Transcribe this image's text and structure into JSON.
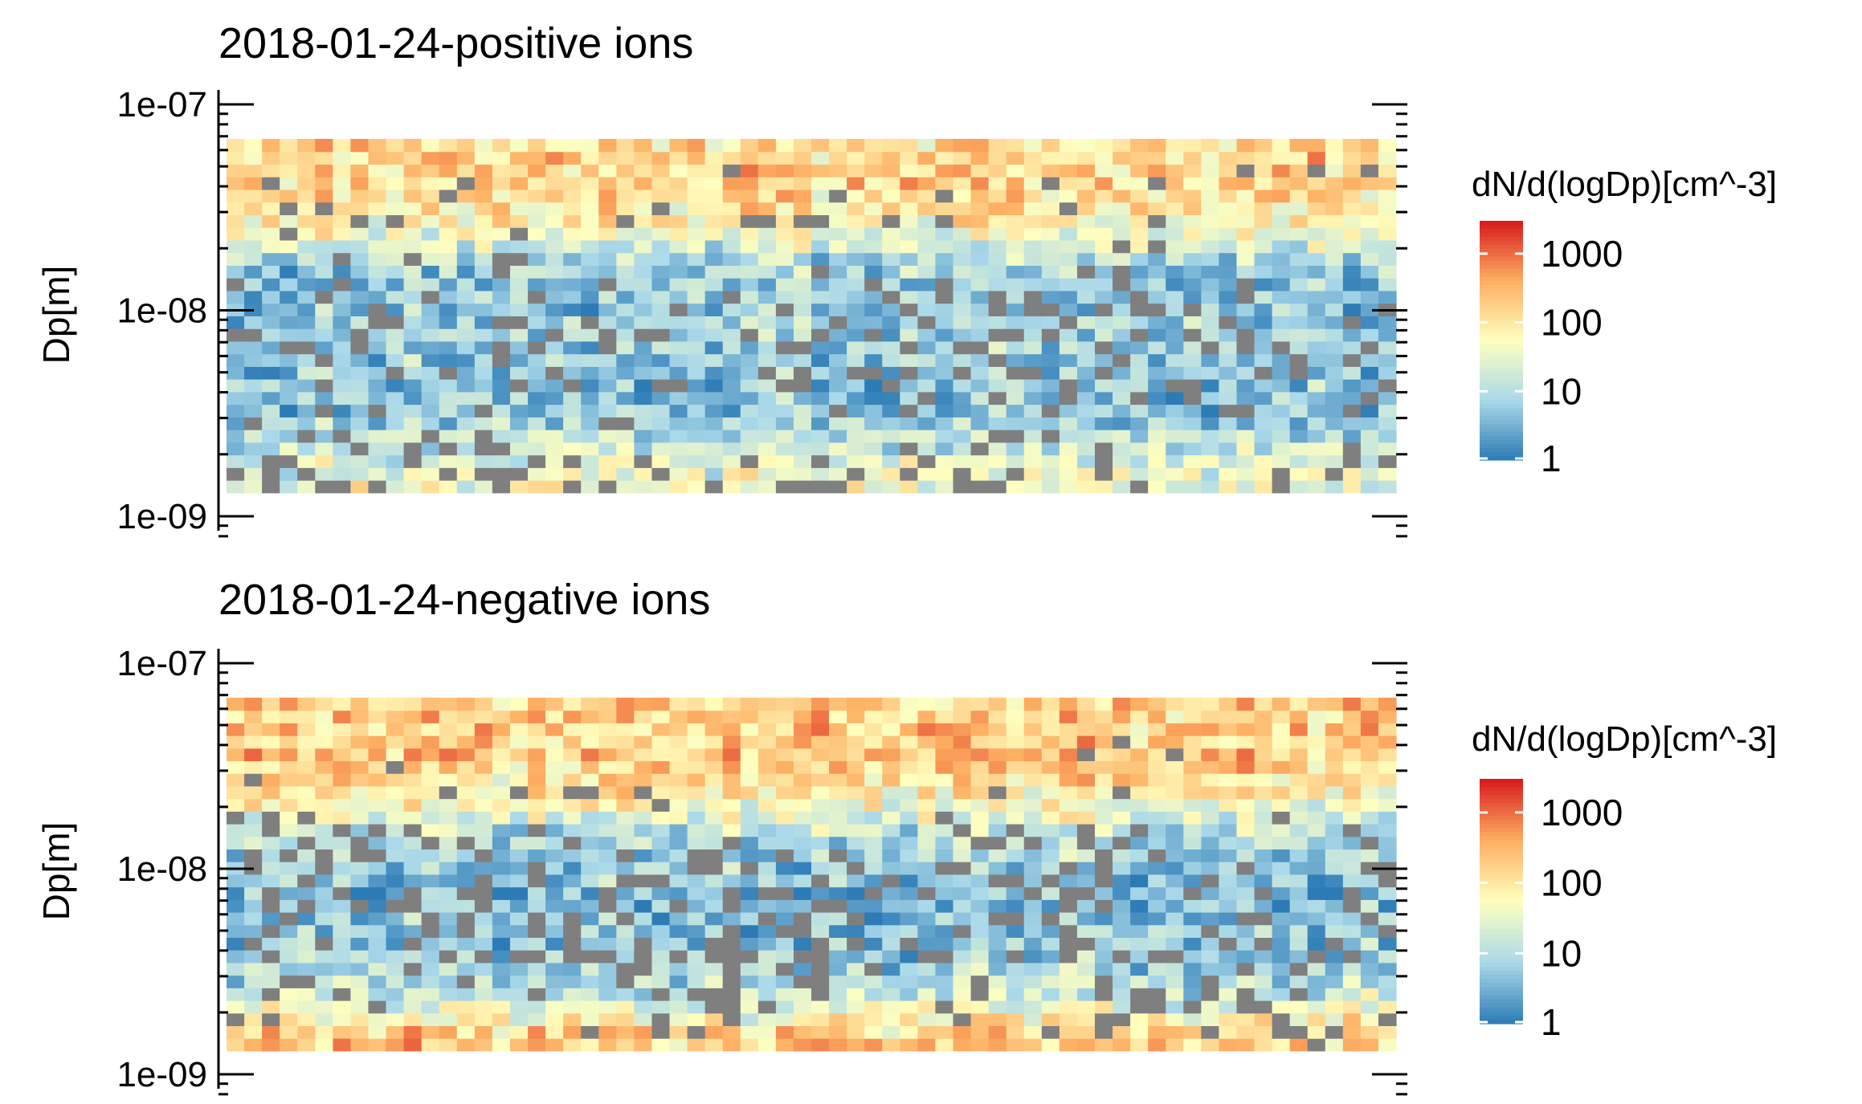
{
  "chart_data": [
    {
      "type": "heatmap",
      "title": "2018-01-24-positive ions",
      "xlabel": "",
      "ylabel": "Dp[m]",
      "y_scale": "log",
      "ylim": [
        1e-09,
        1e-07
      ],
      "y_ticks": [
        {
          "value": 1e-07,
          "label": "1e-07"
        },
        {
          "value": 1e-08,
          "label": "1e-08"
        },
        {
          "value": 1e-09,
          "label": "1e-09"
        }
      ],
      "y_extent": [
        1.3e-09,
        6.8e-08
      ],
      "size_bins": 28,
      "time_bins": 66,
      "missing_color": "#7f7f7f",
      "color_scale": {
        "title": "dN/d(logDp)[cm^-3]",
        "scale": "log",
        "range": [
          1,
          3000
        ],
        "colors": [
          "#2c7bb6",
          "#abd9e9",
          "#ffffbf",
          "#fdae61",
          "#d7191c"
        ],
        "ticks": [
          {
            "value": 1,
            "label": "1"
          },
          {
            "value": 10,
            "label": "10"
          },
          {
            "value": 100,
            "label": "100"
          },
          {
            "value": 1000,
            "label": "1000"
          }
        ]
      },
      "profile_log10": [
        1.6,
        1.5,
        1.4,
        1.2,
        1.0,
        0.8,
        0.7,
        0.7,
        0.7,
        0.7,
        0.8,
        0.8,
        0.8,
        0.8,
        0.7,
        0.7,
        0.7,
        0.8,
        1.0,
        1.3,
        1.6,
        1.8,
        2.0,
        2.1,
        2.2,
        2.2,
        2.2,
        2.1
      ],
      "missing_fraction": [
        0.3,
        0.24,
        0.2,
        0.18,
        0.16,
        0.14,
        0.14,
        0.16,
        0.18,
        0.2,
        0.22,
        0.24,
        0.26,
        0.24,
        0.2,
        0.16,
        0.12,
        0.08,
        0.05,
        0.04,
        0.05,
        0.06,
        0.07,
        0.07,
        0.06,
        0.05,
        0.04,
        0.03
      ],
      "seed": 11
    },
    {
      "type": "heatmap",
      "title": "2018-01-24-negative ions",
      "xlabel": "",
      "ylabel": "Dp[m]",
      "y_scale": "log",
      "ylim": [
        1e-09,
        1e-07
      ],
      "y_ticks": [
        {
          "value": 1e-07,
          "label": "1e-07"
        },
        {
          "value": 1e-08,
          "label": "1e-08"
        },
        {
          "value": 1e-09,
          "label": "1e-09"
        }
      ],
      "y_extent": [
        1.3e-09,
        6.8e-08
      ],
      "size_bins": 28,
      "time_bins": 66,
      "missing_color": "#7f7f7f",
      "color_scale": {
        "title": "dN/d(logDp)[cm^-3]",
        "scale": "log",
        "range": [
          1,
          3000
        ],
        "colors": [
          "#2c7bb6",
          "#abd9e9",
          "#ffffbf",
          "#fdae61",
          "#d7191c"
        ],
        "ticks": [
          {
            "value": 1,
            "label": "1"
          },
          {
            "value": 10,
            "label": "10"
          },
          {
            "value": 100,
            "label": "100"
          },
          {
            "value": 1000,
            "label": "1000"
          }
        ]
      },
      "profile_log10": [
        2.3,
        2.2,
        1.8,
        1.5,
        1.2,
        1.0,
        0.9,
        0.8,
        0.7,
        0.7,
        0.6,
        0.6,
        0.6,
        0.7,
        0.7,
        0.8,
        0.9,
        1.1,
        1.4,
        1.7,
        1.9,
        2.1,
        2.2,
        2.3,
        2.3,
        2.3,
        2.3,
        2.2
      ],
      "missing_fraction": [
        0.06,
        0.08,
        0.1,
        0.12,
        0.14,
        0.16,
        0.18,
        0.2,
        0.22,
        0.24,
        0.26,
        0.26,
        0.26,
        0.24,
        0.22,
        0.2,
        0.18,
        0.14,
        0.1,
        0.06,
        0.04,
        0.03,
        0.02,
        0.02,
        0.02,
        0.02,
        0.02,
        0.02
      ],
      "seed": 29
    }
  ]
}
